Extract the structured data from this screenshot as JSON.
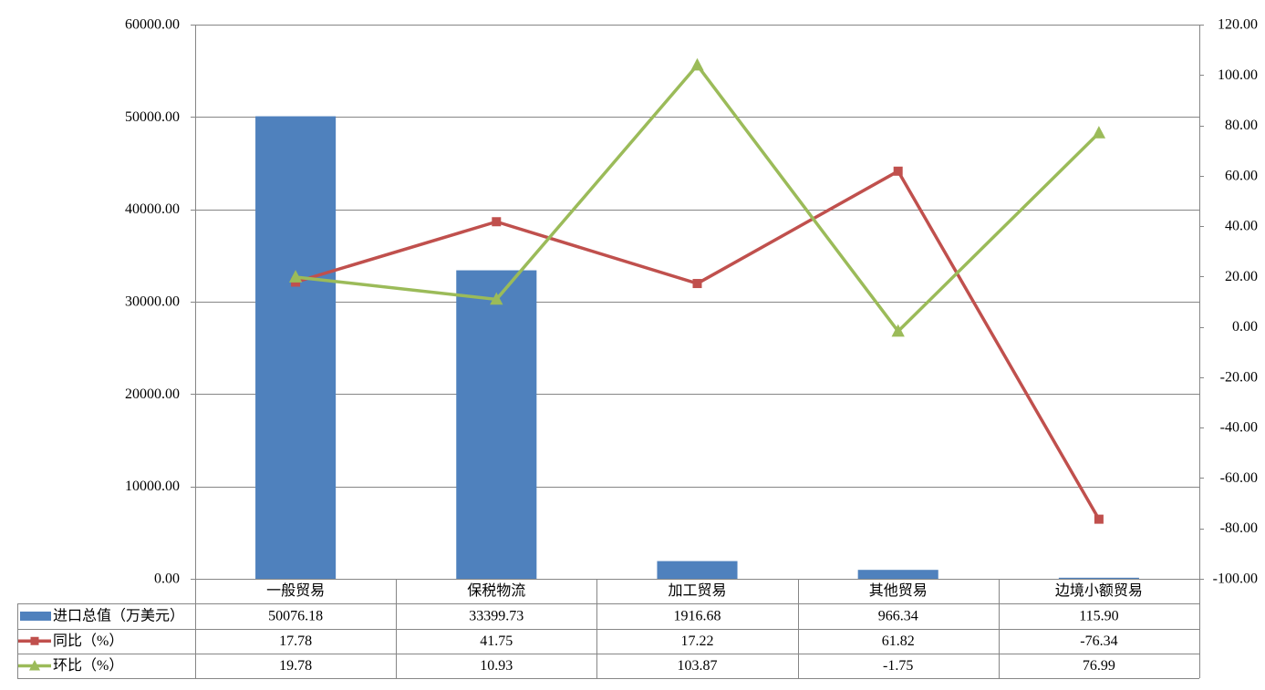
{
  "chart_data": {
    "type": "bar",
    "categories": [
      "一般贸易",
      "保税物流",
      "加工贸易",
      "其他贸易",
      "边境小额贸易"
    ],
    "series": [
      {
        "name": "进口总值（万美元）",
        "type": "bar",
        "axis": "left",
        "color": "#4F81BD",
        "marker": "rect",
        "values": [
          50076.18,
          33399.73,
          1916.68,
          966.34,
          115.9
        ],
        "labels": [
          "50076.18",
          "33399.73",
          "1916.68",
          "966.34",
          "115.90"
        ]
      },
      {
        "name": "同比（%）",
        "type": "line",
        "axis": "right",
        "color": "#C0504D",
        "marker": "square",
        "values": [
          17.78,
          41.75,
          17.22,
          61.82,
          -76.34
        ],
        "labels": [
          "17.78",
          "41.75",
          "17.22",
          "61.82",
          "-76.34"
        ]
      },
      {
        "name": "环比（%）",
        "type": "line",
        "axis": "right",
        "color": "#9BBB59",
        "marker": "triangle",
        "values": [
          19.78,
          10.93,
          103.87,
          -1.75,
          76.99
        ],
        "labels": [
          "19.78",
          "10.93",
          "103.87",
          "-1.75",
          "76.99"
        ]
      }
    ],
    "y_left": {
      "min": 0,
      "max": 60000,
      "step": 10000,
      "tick_labels": [
        "0.00",
        "10000.00",
        "20000.00",
        "30000.00",
        "40000.00",
        "50000.00",
        "60000.00"
      ]
    },
    "y_right": {
      "min": -100,
      "max": 120,
      "step": 20,
      "tick_labels": [
        "-100.00",
        "-80.00",
        "-60.00",
        "-40.00",
        "-20.00",
        "0.00",
        "20.00",
        "40.00",
        "60.00",
        "80.00",
        "100.00",
        "120.00"
      ]
    },
    "grid": true,
    "legend": "bottom-left"
  },
  "colors": {
    "grid": "#868686",
    "text": "#000000",
    "background": "#FFFFFF"
  }
}
